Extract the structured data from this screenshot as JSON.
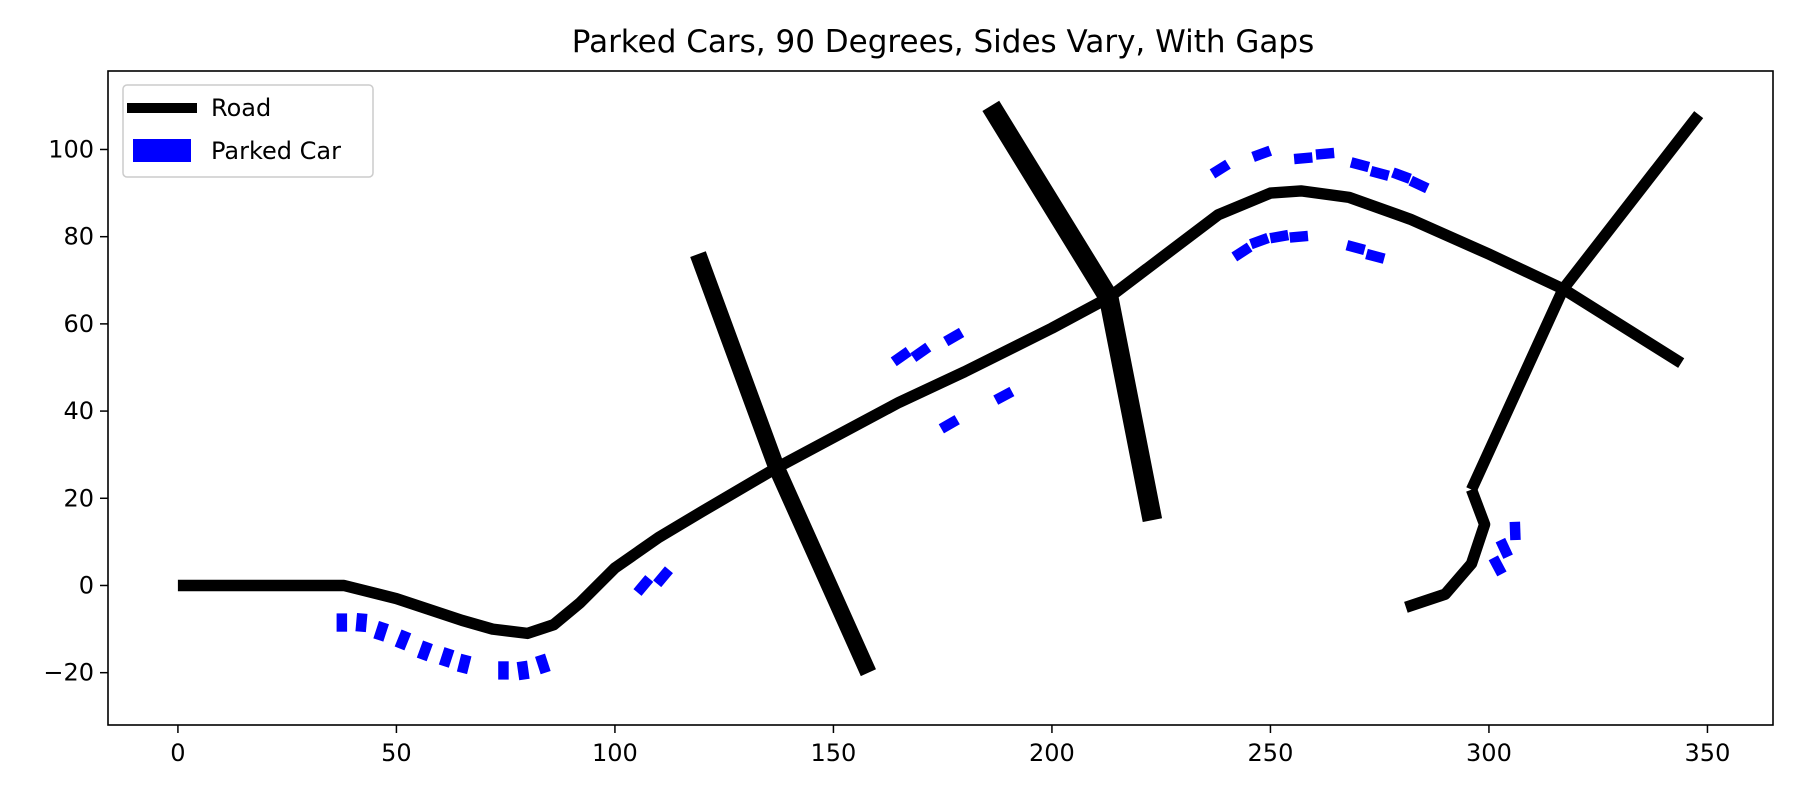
{
  "chart_data": {
    "type": "line",
    "title": "Parked Cars, 90 Degrees, Sides Vary, With Gaps",
    "xlabel": "",
    "ylabel": "",
    "xlim": [
      -16,
      365
    ],
    "ylim": [
      -32,
      118
    ],
    "xticks": [
      0,
      50,
      100,
      150,
      200,
      250,
      300,
      350
    ],
    "yticks": [
      -20,
      0,
      20,
      40,
      60,
      80,
      100
    ],
    "xtick_labels": [
      "0",
      "50",
      "100",
      "150",
      "200",
      "250",
      "300",
      "350"
    ],
    "ytick_labels": [
      "−20",
      "0",
      "20",
      "40",
      "60",
      "80",
      "100"
    ],
    "grid": false,
    "legend": {
      "location": "top-left",
      "entries": [
        {
          "label": "Road",
          "marker": "line",
          "color": "#000000"
        },
        {
          "label": "Parked Car",
          "marker": "patch",
          "color": "#0000ff"
        }
      ]
    },
    "colors": {
      "road": "#000000",
      "car": "#0000ff"
    },
    "roads": [
      {
        "name": "main-road",
        "width": 2.6,
        "points": [
          [
            0,
            0
          ],
          [
            38,
            0
          ],
          [
            50,
            -3
          ],
          [
            65,
            -8
          ],
          [
            72,
            -10
          ],
          [
            80,
            -11
          ],
          [
            86,
            -9
          ],
          [
            92,
            -4
          ],
          [
            100,
            4
          ],
          [
            110,
            11
          ],
          [
            120,
            17
          ],
          [
            137,
            27
          ],
          [
            165,
            42
          ],
          [
            180,
            49
          ],
          [
            200,
            59
          ],
          [
            213,
            66
          ],
          [
            238,
            85
          ],
          [
            250,
            90
          ],
          [
            257,
            90.5
          ],
          [
            268,
            89
          ],
          [
            282,
            84
          ],
          [
            300,
            76
          ],
          [
            317,
            68
          ],
          [
            344,
            51
          ]
        ]
      },
      {
        "name": "cross-road-1",
        "width": 3.8,
        "points": [
          [
            119,
            76
          ],
          [
            137,
            27
          ],
          [
            158,
            -20
          ]
        ]
      },
      {
        "name": "cross-road-2",
        "width": 4.5,
        "points": [
          [
            186,
            110
          ],
          [
            213,
            66
          ],
          [
            223,
            15
          ]
        ]
      },
      {
        "name": "cross-road-3",
        "width": 2.6,
        "points": [
          [
            348,
            108
          ],
          [
            317,
            68
          ],
          [
            296,
            22
          ]
        ]
      },
      {
        "name": "spur-road",
        "width": 2.6,
        "points": [
          [
            296,
            22
          ],
          [
            299,
            14
          ],
          [
            296,
            5
          ],
          [
            290,
            -2
          ],
          [
            281,
            -5
          ]
        ]
      }
    ],
    "parked_cars": [
      {
        "x": 37.5,
        "y": -8.5,
        "angle": -90
      },
      {
        "x": 42,
        "y": -8.5,
        "angle": -85
      },
      {
        "x": 46.5,
        "y": -10.5,
        "angle": -72
      },
      {
        "x": 51.5,
        "y": -12.5,
        "angle": -68
      },
      {
        "x": 56.5,
        "y": -15,
        "angle": -70
      },
      {
        "x": 61.5,
        "y": -16.5,
        "angle": -72
      },
      {
        "x": 65.5,
        "y": -18,
        "angle": -76
      },
      {
        "x": 74.5,
        "y": -19.5,
        "angle": -90
      },
      {
        "x": 79,
        "y": -19.5,
        "angle": -98
      },
      {
        "x": 83.5,
        "y": -18,
        "angle": -108
      },
      {
        "x": 106.5,
        "y": 0,
        "angle": -50
      },
      {
        "x": 111,
        "y": 2,
        "angle": -50
      },
      {
        "x": 165.5,
        "y": 52.5,
        "angle": -35
      },
      {
        "x": 170,
        "y": 53.5,
        "angle": -35
      },
      {
        "x": 177.5,
        "y": 57,
        "angle": -30
      },
      {
        "x": 176.5,
        "y": 37,
        "angle": -30
      },
      {
        "x": 189,
        "y": 43.5,
        "angle": -28
      },
      {
        "x": 238.5,
        "y": 95.5,
        "angle": -32
      },
      {
        "x": 248,
        "y": 99,
        "angle": -20
      },
      {
        "x": 257.5,
        "y": 98,
        "angle": -5
      },
      {
        "x": 262.5,
        "y": 99,
        "angle": -5
      },
      {
        "x": 270.5,
        "y": 96.5,
        "angle": 15
      },
      {
        "x": 275,
        "y": 94.5,
        "angle": 15
      },
      {
        "x": 280,
        "y": 94,
        "angle": 20
      },
      {
        "x": 284,
        "y": 92,
        "angle": 25
      },
      {
        "x": 243.5,
        "y": 76.5,
        "angle": -33
      },
      {
        "x": 247.5,
        "y": 79,
        "angle": -20
      },
      {
        "x": 252,
        "y": 80,
        "angle": -10
      },
      {
        "x": 256.5,
        "y": 80,
        "angle": -5
      },
      {
        "x": 269.5,
        "y": 77.5,
        "angle": 15
      },
      {
        "x": 274,
        "y": 75.5,
        "angle": 15
      },
      {
        "x": 306,
        "y": 12.5,
        "angle": -92
      },
      {
        "x": 303.5,
        "y": 8.5,
        "angle": -115
      },
      {
        "x": 302,
        "y": 4.5,
        "angle": -118
      }
    ]
  }
}
